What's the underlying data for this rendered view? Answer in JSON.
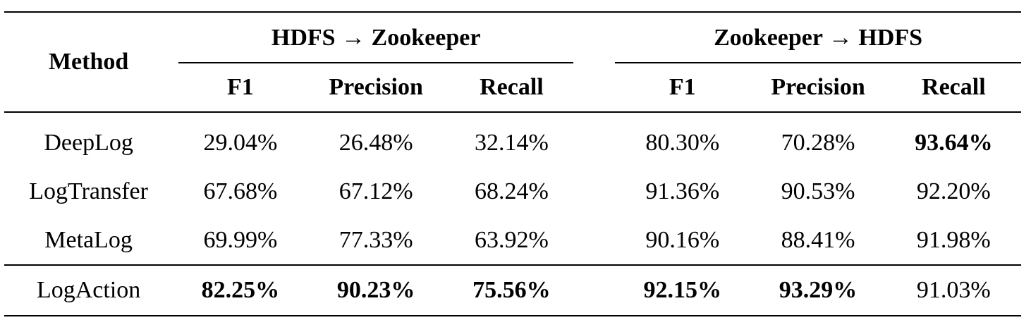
{
  "table": {
    "method_header": "Method",
    "groups": [
      {
        "title": "HDFS → Zookeeper",
        "columns": [
          "F1",
          "Precision",
          "Recall"
        ]
      },
      {
        "title": "Zookeeper → HDFS",
        "columns": [
          "F1",
          "Precision",
          "Recall"
        ]
      }
    ],
    "rows": [
      {
        "method": "DeepLog",
        "values": [
          "29.04%",
          "26.48%",
          "32.14%",
          "80.30%",
          "70.28%",
          "93.64%"
        ],
        "bold": [
          false,
          false,
          false,
          false,
          false,
          true
        ]
      },
      {
        "method": "LogTransfer",
        "values": [
          "67.68%",
          "67.12%",
          "68.24%",
          "91.36%",
          "90.53%",
          "92.20%"
        ],
        "bold": [
          false,
          false,
          false,
          false,
          false,
          false
        ]
      },
      {
        "method": "MetaLog",
        "values": [
          "69.99%",
          "77.33%",
          "63.92%",
          "90.16%",
          "88.41%",
          "91.98%"
        ],
        "bold": [
          false,
          false,
          false,
          false,
          false,
          false
        ]
      },
      {
        "method": "LogAction",
        "values": [
          "82.25%",
          "90.23%",
          "75.56%",
          "92.15%",
          "93.29%",
          "91.03%"
        ],
        "bold": [
          true,
          true,
          true,
          true,
          true,
          false
        ]
      }
    ]
  }
}
